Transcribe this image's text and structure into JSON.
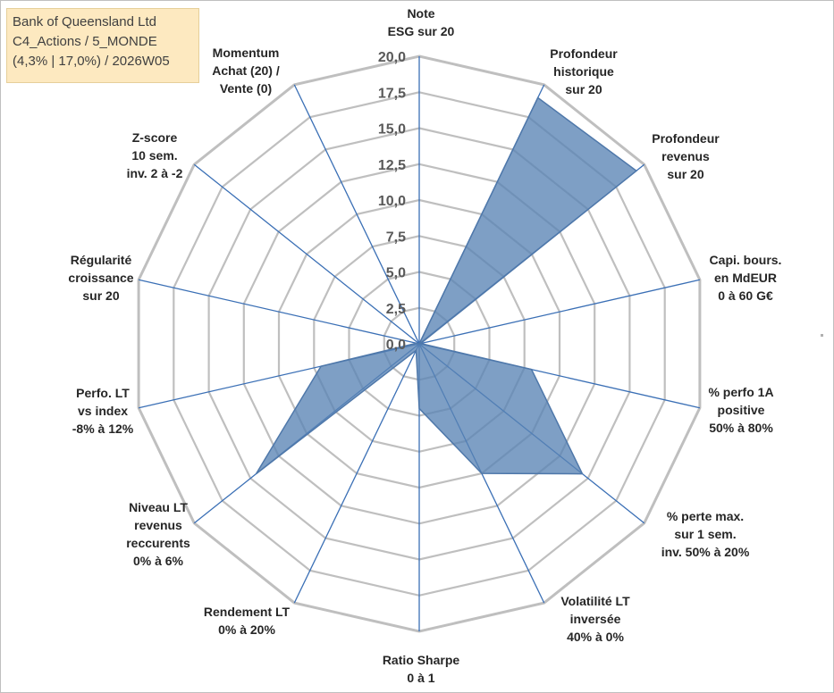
{
  "title_box": {
    "line1": "Bank of Queensland Ltd",
    "line2": "C4_Actions / 5_MONDE",
    "line3": "(4,3% | 17,0%) / 2026W05"
  },
  "chart_data": {
    "type": "radar",
    "title": "",
    "axes": [
      [
        "Note",
        "ESG sur 20"
      ],
      [
        "Profondeur",
        "historique",
        "sur 20"
      ],
      [
        "Profondeur",
        "revenus",
        "sur 20"
      ],
      [
        "Capi. bours.",
        "en MdEUR",
        "0 à 60 G€"
      ],
      [
        "% perfo 1A",
        "positive",
        "50% à 80%"
      ],
      [
        "% perte max.",
        "sur 1 sem.",
        "inv. 50% à 20%"
      ],
      [
        "Volatilité LT",
        "inversée",
        "40% à 0%"
      ],
      [
        "Ratio Sharpe",
        "0 à 1"
      ],
      [
        "Rendement LT",
        "0% à 20%"
      ],
      [
        "Niveau LT",
        "revenus",
        "reccurents",
        "0% à 6%"
      ],
      [
        "Perfo. LT",
        "vs index",
        "-8% à 12%"
      ],
      [
        "Régularité",
        "croissance",
        "sur 20"
      ],
      [
        "Z-score",
        "10 sem.",
        "inv. 2 à -2"
      ],
      [
        "Momentum",
        "Achat (20) /",
        "Vente (0)"
      ]
    ],
    "series": [
      {
        "values": [
          0,
          19.0,
          19.3,
          0.1,
          8.0,
          14.5,
          10.0,
          4.5,
          0.5,
          14.5,
          7.0,
          0.2,
          0,
          0
        ]
      }
    ],
    "rlim": [
      0,
      20
    ],
    "ticks": [
      "0,0",
      "2,5",
      "5,0",
      "7,5",
      "10,0",
      "12,5",
      "15,0",
      "17,5",
      "20,0"
    ],
    "grid": true,
    "legend": "none",
    "colors": {
      "fill": "#5a84b5",
      "spoke": "#3a6fb5",
      "grid": "#bfbfbf",
      "title_bg": "#fde9c0"
    }
  }
}
